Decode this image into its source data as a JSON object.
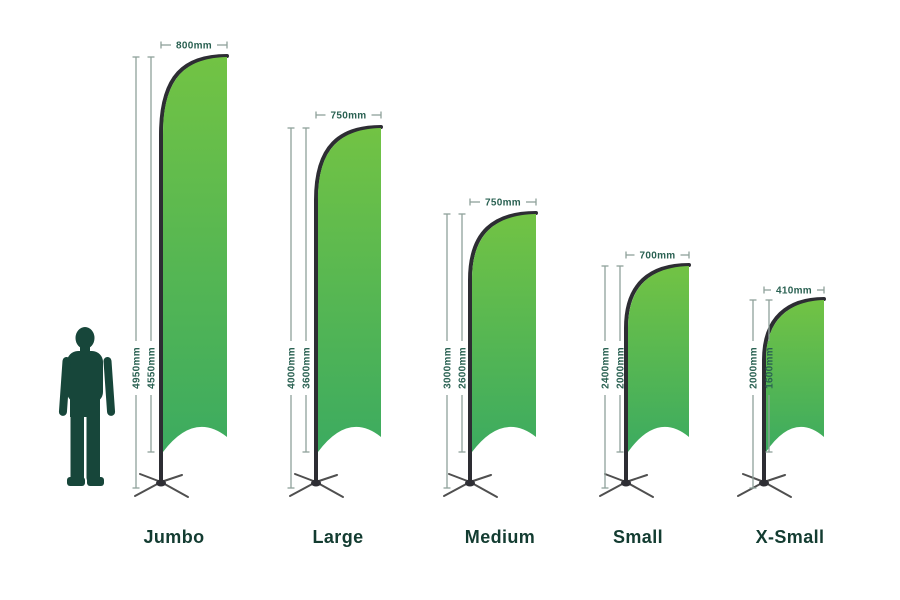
{
  "diagram": {
    "subject": "feather-flag-size-comparison",
    "person_icon": "person-silhouette-icon"
  },
  "flags": [
    {
      "name": "Jumbo",
      "width": "800mm",
      "total_height": "4950mm",
      "flag_height": "4550mm"
    },
    {
      "name": "Large",
      "width": "750mm",
      "total_height": "4000mm",
      "flag_height": "3600mm"
    },
    {
      "name": "Medium",
      "width": "750mm",
      "total_height": "3000mm",
      "flag_height": "2600mm"
    },
    {
      "name": "Small",
      "width": "700mm",
      "total_height": "2400mm",
      "flag_height": "2000mm"
    },
    {
      "name": "X-Small",
      "width": "410mm",
      "total_height": "2000mm",
      "flag_height": "1600mm"
    }
  ],
  "colors": {
    "background": "#ffffff",
    "flag_gradient_top": "#72c344",
    "flag_gradient_bottom": "#3cab60",
    "pole": "#2d2d33",
    "base_legs": "#4f4f4f",
    "base_hub": "#2f2f35",
    "dimension_line": "#8fa29a",
    "dimension_text": "#2a6152",
    "label_text": "#133c31",
    "silhouette": "#17463a"
  }
}
